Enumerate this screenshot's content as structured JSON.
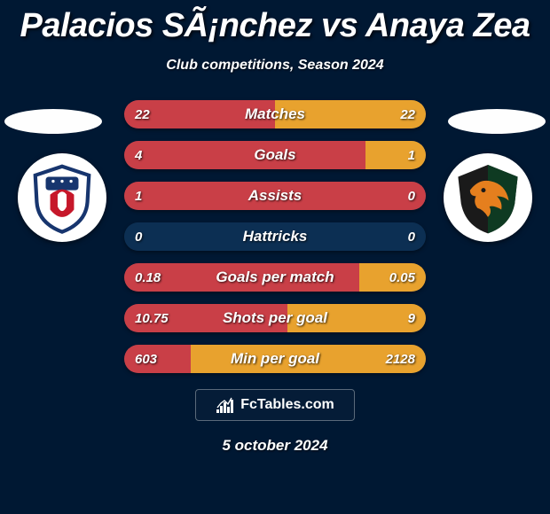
{
  "title": "Palacios SÃ¡nchez vs Anaya Zea",
  "subtitle": "Club competitions, Season 2024",
  "date": "5 october 2024",
  "brand": "FcTables.com",
  "colors": {
    "background": "#001833",
    "bar_bg": "#0c2f53",
    "left_color": "#c93f47",
    "right_color": "#e8a22e",
    "ellipse_color": "#fefefe",
    "crest1_primary": "#17356e",
    "crest1_accent": "#c6172a",
    "crest2_primary": "#1a1a1a",
    "crest2_accent": "#e57f1e"
  },
  "stats": [
    {
      "label": "Matches",
      "left_val": "22",
      "right_val": "22",
      "left_pct": 50,
      "right_pct": 50
    },
    {
      "label": "Goals",
      "left_val": "4",
      "right_val": "1",
      "left_pct": 80,
      "right_pct": 20
    },
    {
      "label": "Assists",
      "left_val": "1",
      "right_val": "0",
      "left_pct": 100,
      "right_pct": 0
    },
    {
      "label": "Hattricks",
      "left_val": "0",
      "right_val": "0",
      "left_pct": 0,
      "right_pct": 0
    },
    {
      "label": "Goals per match",
      "left_val": "0.18",
      "right_val": "0.05",
      "left_pct": 78,
      "right_pct": 22
    },
    {
      "label": "Shots per goal",
      "left_val": "10.75",
      "right_val": "9",
      "left_pct": 54,
      "right_pct": 46
    },
    {
      "label": "Min per goal",
      "left_val": "603",
      "right_val": "2128",
      "left_pct": 22,
      "right_pct": 78
    }
  ]
}
